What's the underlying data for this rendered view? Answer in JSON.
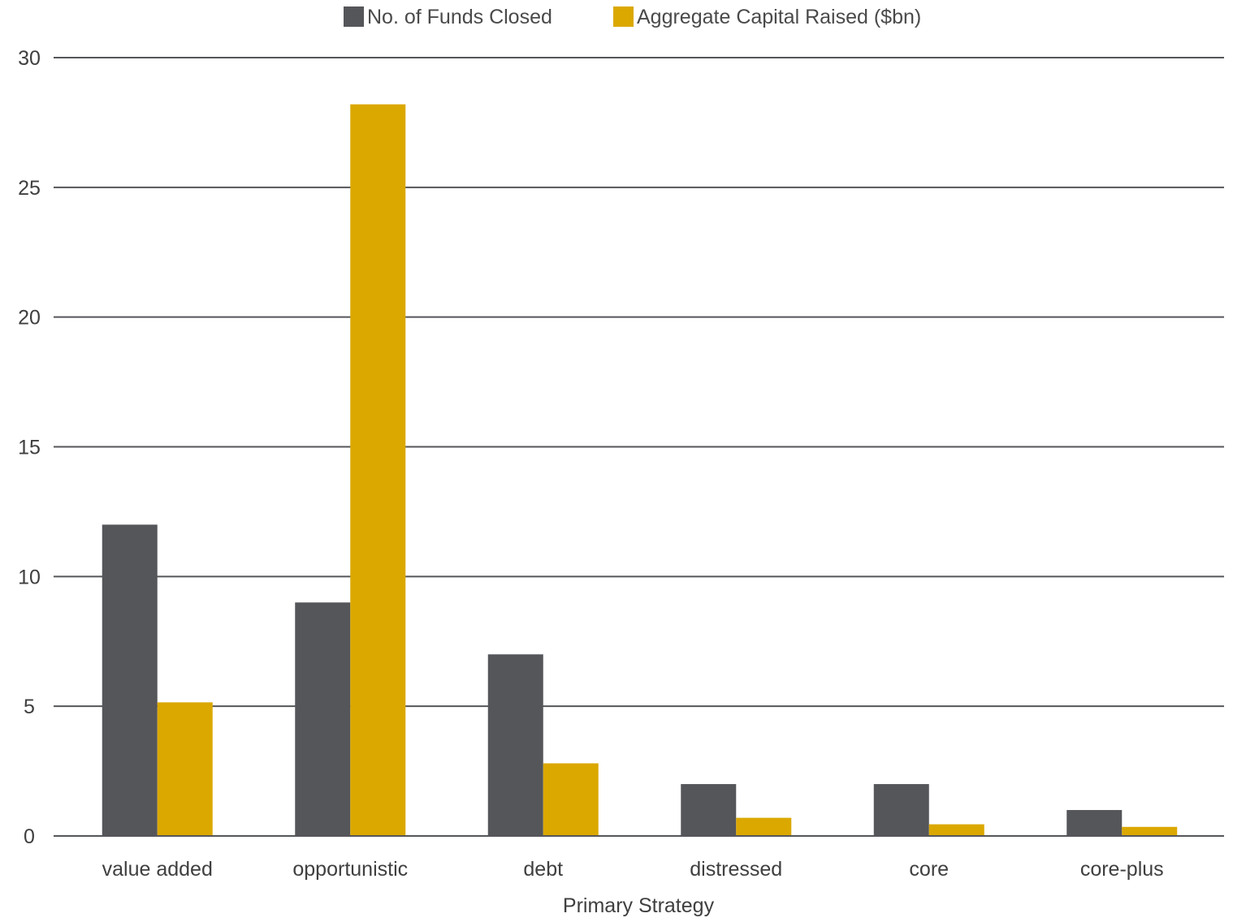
{
  "chart_data": {
    "type": "bar",
    "title": "",
    "xlabel": "Primary Strategy",
    "ylabel": "",
    "ylim": [
      0,
      30
    ],
    "yticks": [
      0,
      5,
      10,
      15,
      20,
      25,
      30
    ],
    "grid": true,
    "legend_position": "top-center",
    "categories": [
      "value added",
      "opportunistic",
      "debt",
      "distressed",
      "core",
      "core-plus"
    ],
    "series": [
      {
        "name": "No. of Funds Closed",
        "color": "#55565a",
        "values": [
          12,
          9,
          7,
          2,
          2,
          1
        ]
      },
      {
        "name": "Aggregate Capital Raised ($bn)",
        "color": "#dba800",
        "values": [
          5.15,
          28.2,
          2.8,
          0.7,
          0.45,
          0.35
        ]
      }
    ]
  }
}
